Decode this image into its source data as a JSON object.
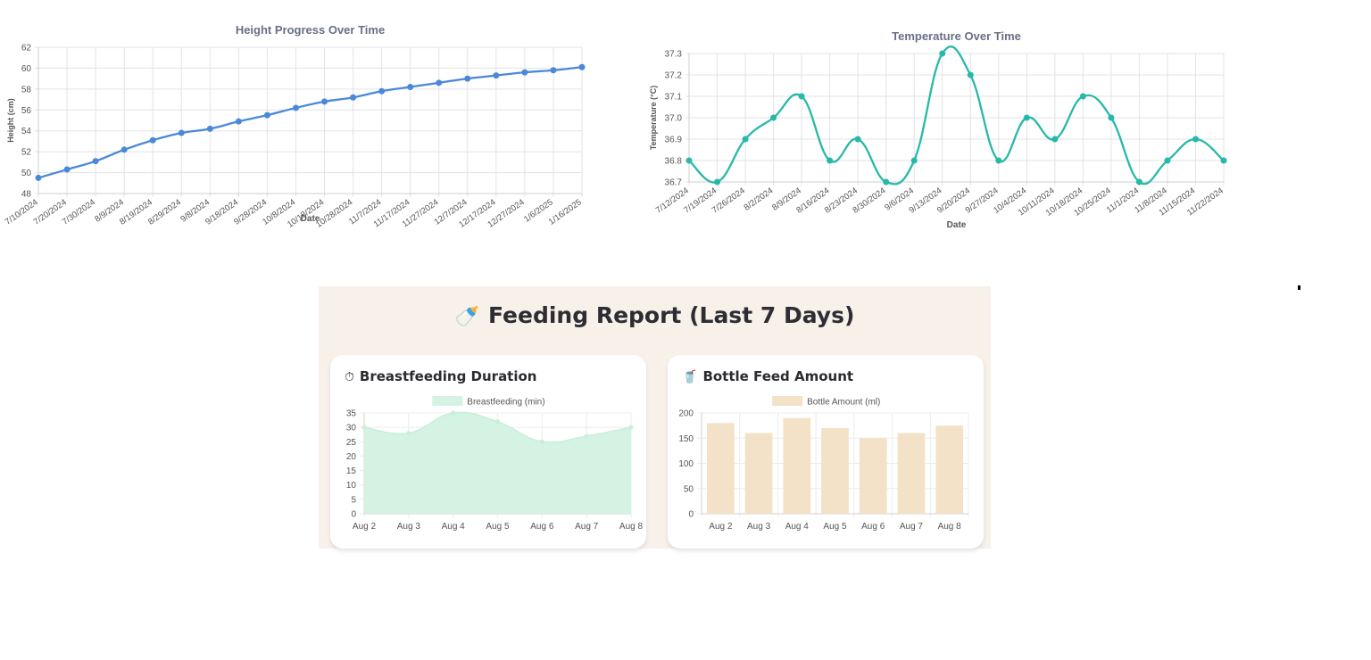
{
  "chart_data": [
    {
      "type": "line",
      "title": "Height Progress Over Time",
      "xlabel": "Date",
      "ylabel": "Height (cm)",
      "color": "#4a88da",
      "ylim": [
        48,
        62
      ],
      "yticks": [
        48,
        50,
        52,
        54,
        56,
        58,
        60,
        62
      ],
      "grid": true,
      "categories": [
        "7/10/2024",
        "7/20/2024",
        "7/30/2024",
        "8/9/2024",
        "8/19/2024",
        "8/29/2024",
        "9/8/2024",
        "9/18/2024",
        "9/28/2024",
        "10/8/2024",
        "10/18/2024",
        "10/28/2024",
        "11/7/2024",
        "11/17/2024",
        "11/27/2024",
        "12/7/2024",
        "12/17/2024",
        "12/27/2024",
        "1/6/2025",
        "1/16/2025"
      ],
      "values": [
        49.5,
        50.3,
        51.1,
        52.2,
        53.1,
        53.8,
        54.2,
        54.9,
        55.5,
        56.2,
        56.8,
        57.2,
        57.8,
        58.2,
        58.6,
        59.0,
        59.3,
        59.6,
        59.8,
        60.1
      ]
    },
    {
      "type": "line",
      "title": "Temperature Over Time",
      "xlabel": "Date",
      "ylabel": "Temperature (°C)",
      "color": "#27b9a8",
      "ylim": [
        36.7,
        37.3
      ],
      "yticks": [
        "36.7",
        "36.8",
        "36.9",
        "37.0",
        "37.1",
        "37.2",
        "37.3"
      ],
      "grid": true,
      "categories": [
        "7/12/2024",
        "7/19/2024",
        "7/26/2024",
        "8/2/2024",
        "8/9/2024",
        "8/16/2024",
        "8/23/2024",
        "8/30/2024",
        "9/6/2024",
        "9/13/2024",
        "9/20/2024",
        "9/27/2024",
        "10/4/2024",
        "10/11/2024",
        "10/18/2024",
        "10/25/2024",
        "11/1/2024",
        "11/8/2024",
        "11/15/2024",
        "11/22/2024"
      ],
      "values": [
        36.8,
        36.7,
        36.9,
        37.0,
        37.1,
        36.8,
        36.9,
        36.7,
        36.8,
        37.3,
        37.2,
        36.8,
        37.0,
        36.9,
        37.1,
        37.0,
        36.7,
        36.8,
        36.9,
        36.8
      ]
    },
    {
      "type": "area",
      "title": "Breastfeeding Duration",
      "legend": "Breastfeeding (min)",
      "color": "#d5f3e2",
      "ylim": [
        0,
        35
      ],
      "yticks": [
        0,
        5,
        10,
        15,
        20,
        25,
        30,
        35
      ],
      "categories": [
        "Aug 2",
        "Aug 3",
        "Aug 4",
        "Aug 5",
        "Aug 6",
        "Aug 7",
        "Aug 8"
      ],
      "values": [
        30,
        28,
        35,
        32,
        25,
        27,
        30
      ]
    },
    {
      "type": "bar",
      "title": "Bottle Feed Amount",
      "legend": "Bottle Amount (ml)",
      "color": "#f3e2c8",
      "ylim": [
        0,
        200
      ],
      "yticks": [
        0,
        50,
        100,
        150,
        200
      ],
      "categories": [
        "Aug 2",
        "Aug 3",
        "Aug 4",
        "Aug 5",
        "Aug 6",
        "Aug 7",
        "Aug 8"
      ],
      "values": [
        180,
        160,
        190,
        170,
        150,
        160,
        175
      ]
    }
  ],
  "feeding": {
    "title": "Feeding Report (Last 7 Days)",
    "title_icon": "baby-bottle-icon",
    "breast_icon": "stopwatch-icon",
    "bottle_icon": "cup-icon"
  }
}
